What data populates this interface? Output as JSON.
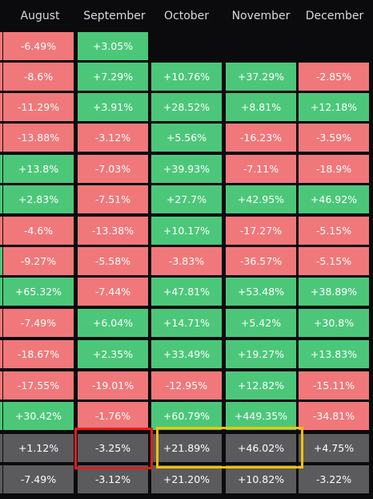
{
  "columns": [
    "August",
    "September",
    "October",
    "November",
    "December"
  ],
  "rows": [
    {
      "edge": "neg",
      "cells": [
        {
          "v": "-6.49%",
          "t": "neg"
        },
        {
          "v": "+3.05%",
          "t": "pos"
        },
        {
          "v": "",
          "t": "blank"
        },
        {
          "v": "",
          "t": "blank"
        },
        {
          "v": "",
          "t": "blank"
        }
      ]
    },
    {
      "edge": "neg",
      "cells": [
        {
          "v": "-8.6%",
          "t": "neg"
        },
        {
          "v": "+7.29%",
          "t": "pos"
        },
        {
          "v": "+10.76%",
          "t": "pos"
        },
        {
          "v": "+37.29%",
          "t": "pos"
        },
        {
          "v": "-2.85%",
          "t": "neg"
        }
      ]
    },
    {
      "edge": "neg",
      "cells": [
        {
          "v": "-11.29%",
          "t": "neg"
        },
        {
          "v": "+3.91%",
          "t": "pos"
        },
        {
          "v": "+28.52%",
          "t": "pos"
        },
        {
          "v": "+8.81%",
          "t": "pos"
        },
        {
          "v": "+12.18%",
          "t": "pos"
        }
      ]
    },
    {
      "edge": "neg",
      "cells": [
        {
          "v": "-13.88%",
          "t": "neg"
        },
        {
          "v": "-3.12%",
          "t": "neg"
        },
        {
          "v": "+5.56%",
          "t": "pos"
        },
        {
          "v": "-16.23%",
          "t": "neg"
        },
        {
          "v": "-3.59%",
          "t": "neg"
        }
      ]
    },
    {
      "edge": "pos",
      "cells": [
        {
          "v": "+13.8%",
          "t": "pos"
        },
        {
          "v": "-7.03%",
          "t": "neg"
        },
        {
          "v": "+39.93%",
          "t": "pos"
        },
        {
          "v": "-7.11%",
          "t": "neg"
        },
        {
          "v": "-18.9%",
          "t": "neg"
        }
      ]
    },
    {
      "edge": "pos",
      "cells": [
        {
          "v": "+2.83%",
          "t": "pos"
        },
        {
          "v": "-7.51%",
          "t": "neg"
        },
        {
          "v": "+27.7%",
          "t": "pos"
        },
        {
          "v": "+42.95%",
          "t": "pos"
        },
        {
          "v": "+46.92%",
          "t": "pos"
        }
      ]
    },
    {
      "edge": "neg",
      "cells": [
        {
          "v": "-4.6%",
          "t": "neg"
        },
        {
          "v": "-13.38%",
          "t": "neg"
        },
        {
          "v": "+10.17%",
          "t": "pos"
        },
        {
          "v": "-17.27%",
          "t": "neg"
        },
        {
          "v": "-5.15%",
          "t": "neg"
        }
      ]
    },
    {
      "edge": "pos",
      "cells": [
        {
          "v": "-9.27%",
          "t": "neg"
        },
        {
          "v": "-5.58%",
          "t": "neg"
        },
        {
          "v": "-3.83%",
          "t": "neg"
        },
        {
          "v": "-36.57%",
          "t": "neg"
        },
        {
          "v": "-5.15%",
          "t": "neg"
        }
      ]
    },
    {
      "edge": "pos",
      "cells": [
        {
          "v": "+65.32%",
          "t": "pos"
        },
        {
          "v": "-7.44%",
          "t": "neg"
        },
        {
          "v": "+47.81%",
          "t": "pos"
        },
        {
          "v": "+53.48%",
          "t": "pos"
        },
        {
          "v": "+38.89%",
          "t": "pos"
        }
      ]
    },
    {
      "edge": "neg",
      "cells": [
        {
          "v": "-7.49%",
          "t": "neg"
        },
        {
          "v": "+6.04%",
          "t": "pos"
        },
        {
          "v": "+14.71%",
          "t": "pos"
        },
        {
          "v": "+5.42%",
          "t": "pos"
        },
        {
          "v": "+30.8%",
          "t": "pos"
        }
      ]
    },
    {
      "edge": "neg",
      "cells": [
        {
          "v": "-18.67%",
          "t": "neg"
        },
        {
          "v": "+2.35%",
          "t": "pos"
        },
        {
          "v": "+33.49%",
          "t": "pos"
        },
        {
          "v": "+19.27%",
          "t": "pos"
        },
        {
          "v": "+13.83%",
          "t": "pos"
        }
      ]
    },
    {
      "edge": "neg",
      "cells": [
        {
          "v": "-17.55%",
          "t": "neg"
        },
        {
          "v": "-19.01%",
          "t": "neg"
        },
        {
          "v": "-12.95%",
          "t": "neg"
        },
        {
          "v": "+12.82%",
          "t": "pos"
        },
        {
          "v": "-15.11%",
          "t": "neg"
        }
      ]
    },
    {
      "edge": "pos",
      "cells": [
        {
          "v": "+30.42%",
          "t": "pos"
        },
        {
          "v": "-1.76%",
          "t": "neg"
        },
        {
          "v": "+60.79%",
          "t": "pos"
        },
        {
          "v": "+449.35%",
          "t": "pos"
        },
        {
          "v": "-34.81%",
          "t": "neg"
        }
      ]
    },
    {
      "edge": "neu",
      "cells": [
        {
          "v": "+1.12%",
          "t": "neu"
        },
        {
          "v": "-3.25%",
          "t": "neu"
        },
        {
          "v": "+21.89%",
          "t": "neu"
        },
        {
          "v": "+46.02%",
          "t": "neu"
        },
        {
          "v": "+4.75%",
          "t": "neu"
        }
      ]
    },
    {
      "edge": "neu",
      "cells": [
        {
          "v": "-7.49%",
          "t": "neu"
        },
        {
          "v": "-3.12%",
          "t": "neu"
        },
        {
          "v": "+21.20%",
          "t": "neu"
        },
        {
          "v": "+10.82%",
          "t": "neu"
        },
        {
          "v": "-3.22%",
          "t": "neu"
        }
      ]
    }
  ],
  "colors": {
    "positive": "#4cc77a",
    "negative": "#f0787a",
    "neutral": "#5b5b5e",
    "background": "#0b0b0d",
    "highlight_red": "#e11d1d",
    "highlight_yellow": "#f2c200"
  }
}
